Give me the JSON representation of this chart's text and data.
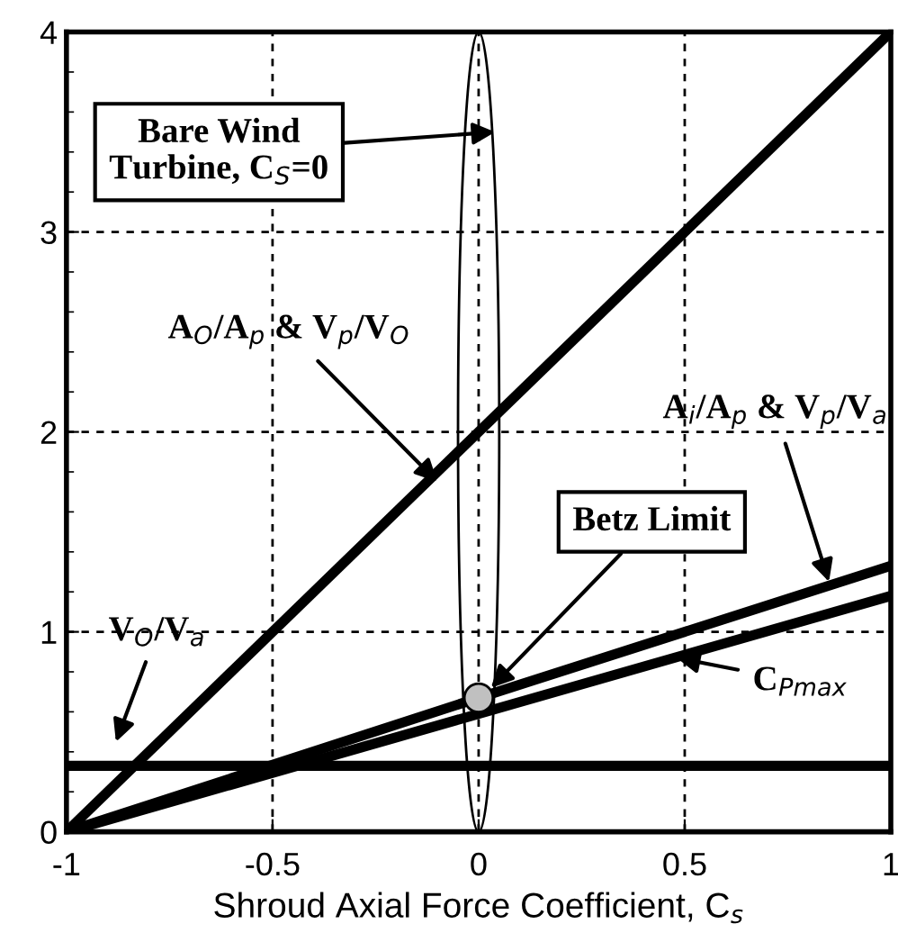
{
  "chart_data": {
    "type": "line",
    "xlabel": "Shroud Axial Force Coefficient, C$_{s}$",
    "xlim": [
      -1,
      1
    ],
    "ylim": [
      0,
      4
    ],
    "xticks": [
      -1,
      -0.5,
      0,
      0.5,
      1
    ],
    "yticks": [
      0,
      1,
      2,
      3,
      4
    ],
    "grid": true,
    "marker": "none",
    "line_style": "solid",
    "series": [
      {
        "color": "#000000",
        "x": [
          -1,
          1
        ],
        "values": [
          0,
          4
        ]
      },
      {
        "color": "#000000",
        "x": [
          -1,
          0,
          1
        ],
        "values": [
          0,
          0.67,
          1.33
        ]
      },
      {
        "color": "#000000",
        "x": [
          -1,
          0,
          1
        ],
        "values": [
          0,
          0.59,
          1.18
        ]
      },
      {
        "color": "#000000",
        "x": [
          -1,
          1
        ],
        "values": [
          0.33,
          0.33
        ]
      },
      {
        "type": "scatter",
        "color": "#c0c0c0",
        "x": [
          0
        ],
        "values": [
          0.67
        ],
        "marker": "circle"
      }
    ],
    "annotations": [
      "Bare Wind\nTurbine, C$_{S}$=0",
      {
        "text": "A$_{O}$/A$_{p}$ & V$_{p}$/V$_{O}$",
        "x": -0.1,
        "y": 1.75
      },
      {
        "text": "A$_{i}$/A$_{p}$ & V$_{p}$/V$_{a}$",
        "x": 0.85,
        "y": 1.25
      },
      {
        "text": "Betz Limit",
        "x": 0.03,
        "y": 0.72
      },
      {
        "text": "C$_{Pmax}$",
        "x": 0.48,
        "y": 0.87
      },
      "V$_{O}$/V$_{a}$"
    ]
  }
}
